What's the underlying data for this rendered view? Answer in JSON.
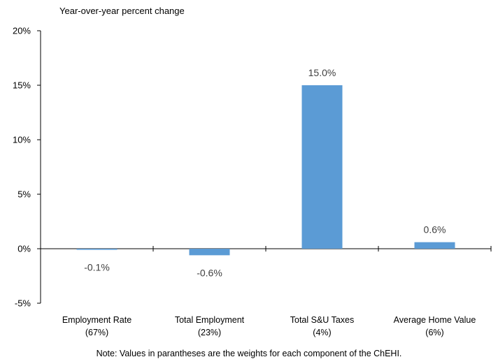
{
  "chart_data": {
    "type": "bar",
    "ylabel": "Year-over-year percent change",
    "categories": [
      {
        "name": "Employment Rate",
        "weight": "(67%)"
      },
      {
        "name": "Total Employment",
        "weight": "(23%)"
      },
      {
        "name": "Total S&U Taxes",
        "weight": "(4%)"
      },
      {
        "name": "Average Home Value",
        "weight": "(6%)"
      }
    ],
    "values": [
      -0.1,
      -0.6,
      15.0,
      0.6
    ],
    "value_labels": [
      "-0.1%",
      "-0.6%",
      "15.0%",
      "0.6%"
    ],
    "yticks": [
      -5,
      0,
      5,
      10,
      15,
      20
    ],
    "ytick_labels": [
      "-5%",
      "0%",
      "5%",
      "10%",
      "15%",
      "20%"
    ],
    "ylim": [
      -5,
      20
    ],
    "grid": false,
    "bar_color": "#5B9BD5",
    "note": "Note: Values in parantheses are the weights for each component of the ChEHI."
  }
}
